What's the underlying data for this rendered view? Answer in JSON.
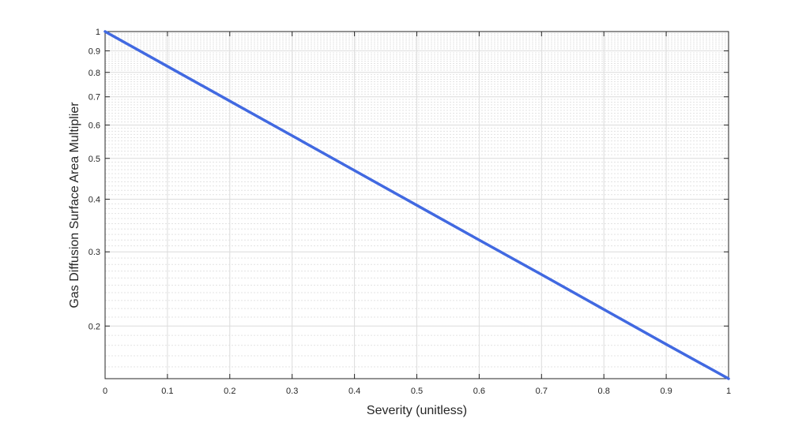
{
  "chart_data": {
    "type": "line",
    "title": "",
    "xlabel": "Severity (unitless)",
    "ylabel": "Gas Diffusion Surface Area Multiplier",
    "xlim": [
      0,
      1
    ],
    "ylim": [
      0.15,
      1
    ],
    "yscale": "log",
    "grid": true,
    "minor_grid": true,
    "x_ticks": [
      0,
      0.1,
      0.2,
      0.3,
      0.4,
      0.5,
      0.6,
      0.7,
      0.8,
      0.9,
      1
    ],
    "x_tick_labels": [
      "0",
      "0.1",
      "0.2",
      "0.3",
      "0.4",
      "0.5",
      "0.6",
      "0.7",
      "0.8",
      "0.9",
      "1"
    ],
    "y_ticks": [
      0.2,
      0.3,
      0.4,
      0.5,
      0.6,
      0.7,
      0.8,
      0.9,
      1
    ],
    "y_tick_labels": [
      "0.2",
      "0.3",
      "0.4",
      "0.5",
      "0.6",
      "0.7",
      "0.8",
      "0.9",
      "1"
    ],
    "series": [
      {
        "color": "#4169E1",
        "x": [
          0,
          0.1,
          0.2,
          0.3,
          0.4,
          0.5,
          0.6,
          0.7,
          0.8,
          0.9,
          1
        ],
        "y": [
          1,
          0.827,
          0.684,
          0.566,
          0.468,
          0.387,
          0.32,
          0.265,
          0.219,
          0.181,
          0.15
        ]
      }
    ]
  }
}
